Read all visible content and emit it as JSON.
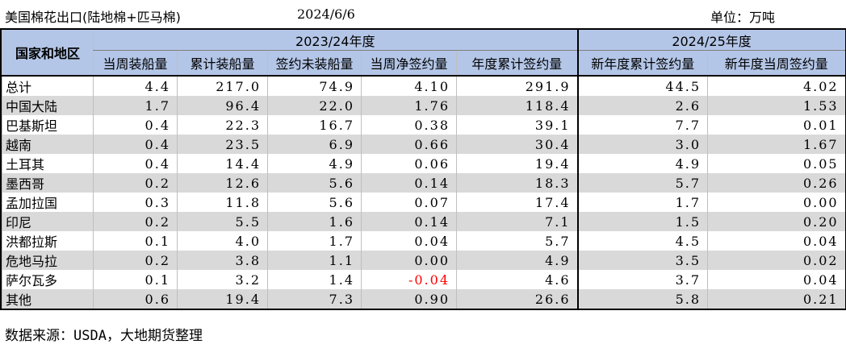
{
  "header": {
    "title": "美国棉花出口(陆地棉+匹马棉)",
    "date": "2024/6/6",
    "unit": "单位：万吨"
  },
  "table": {
    "region_header": "国家和地区",
    "group_2324": "2023/24年度",
    "group_2425": "2024/25年度",
    "columns": [
      "当周装船量",
      "累计装船量",
      "签约未装船量",
      "当周净签约量",
      "年度累计签约量",
      "新年度累计签约量",
      "新年度当周签约量"
    ],
    "rows": [
      {
        "name": "总计",
        "values": [
          "4.4",
          "217.0",
          "74.9",
          "4.10",
          "291.9",
          "44.5",
          "4.02"
        ]
      },
      {
        "name": "中国大陆",
        "values": [
          "1.7",
          "96.4",
          "22.0",
          "1.76",
          "118.4",
          "2.6",
          "1.53"
        ]
      },
      {
        "name": "巴基斯坦",
        "values": [
          "0.4",
          "22.3",
          "16.7",
          "0.38",
          "39.1",
          "7.7",
          "0.01"
        ]
      },
      {
        "name": "越南",
        "values": [
          "0.4",
          "23.5",
          "6.9",
          "0.66",
          "30.4",
          "3.0",
          "1.67"
        ]
      },
      {
        "name": "土耳其",
        "values": [
          "0.4",
          "14.4",
          "4.9",
          "0.06",
          "19.4",
          "4.9",
          "0.05"
        ]
      },
      {
        "name": "墨西哥",
        "values": [
          "0.2",
          "12.6",
          "5.6",
          "0.14",
          "18.3",
          "5.7",
          "0.26"
        ]
      },
      {
        "name": "孟加拉国",
        "values": [
          "0.3",
          "11.8",
          "5.6",
          "0.07",
          "17.4",
          "1.7",
          "0.00"
        ]
      },
      {
        "name": "印尼",
        "values": [
          "0.2",
          "5.5",
          "1.6",
          "0.14",
          "7.1",
          "1.5",
          "0.20"
        ]
      },
      {
        "name": "洪都拉斯",
        "values": [
          "0.1",
          "4.0",
          "1.7",
          "0.04",
          "5.7",
          "4.5",
          "0.04"
        ]
      },
      {
        "name": "危地马拉",
        "values": [
          "0.2",
          "3.8",
          "1.1",
          "0.00",
          "4.9",
          "3.5",
          "0.02"
        ]
      },
      {
        "name": "萨尔瓦多",
        "values": [
          "0.1",
          "3.2",
          "1.4",
          "-0.04",
          "4.6",
          "3.7",
          "0.04"
        ]
      },
      {
        "name": "其他",
        "values": [
          "0.6",
          "19.4",
          "7.3",
          "0.90",
          "26.6",
          "5.8",
          "0.21"
        ]
      }
    ]
  },
  "colors": {
    "header_bg": "#b4c6e7",
    "alt_row_bg": "#d9d9d9",
    "negative": "#ff0000"
  },
  "footer": "数据来源：USDA，大地期货整理"
}
